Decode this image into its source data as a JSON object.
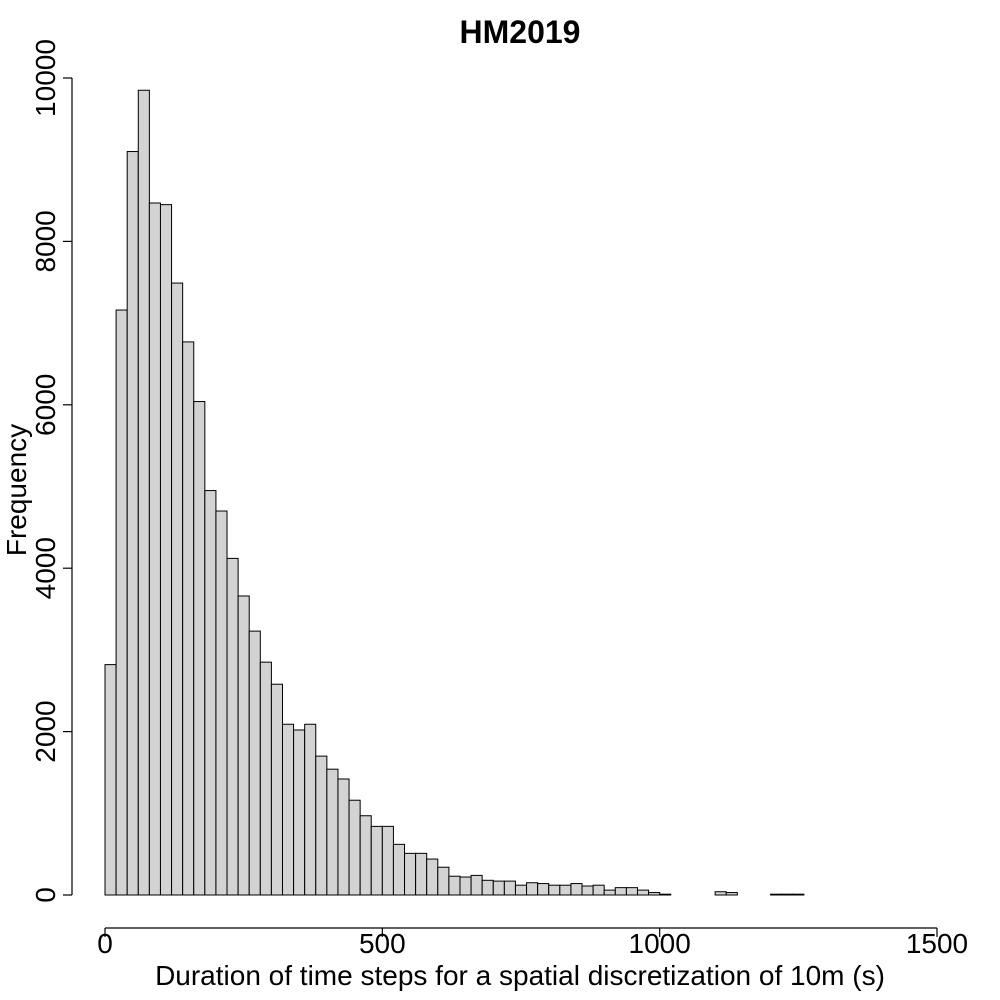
{
  "chart_data": {
    "type": "bar",
    "title": "HM2019",
    "xlabel": "Duration of time steps for a spatial discretization of 10m (s)",
    "ylabel": "Frequency",
    "xlim": [
      0,
      1500
    ],
    "ylim": [
      0,
      10000
    ],
    "x_ticks": [
      0,
      500,
      1000,
      1500
    ],
    "y_ticks": [
      0,
      2000,
      4000,
      6000,
      8000,
      10000
    ],
    "bin_width": 20,
    "bins_start": 0,
    "values": [
      2820,
      7160,
      9100,
      9850,
      8470,
      8450,
      7490,
      6770,
      6040,
      4950,
      4700,
      4120,
      3660,
      3230,
      2850,
      2580,
      2090,
      2020,
      2090,
      1700,
      1540,
      1420,
      1160,
      970,
      840,
      840,
      620,
      510,
      510,
      440,
      340,
      230,
      220,
      240,
      180,
      170,
      170,
      120,
      150,
      140,
      120,
      120,
      140,
      110,
      120,
      60,
      90,
      90,
      60,
      30,
      10,
      0,
      0,
      0,
      0,
      40,
      30,
      0,
      0,
      0,
      10,
      10,
      10
    ]
  }
}
